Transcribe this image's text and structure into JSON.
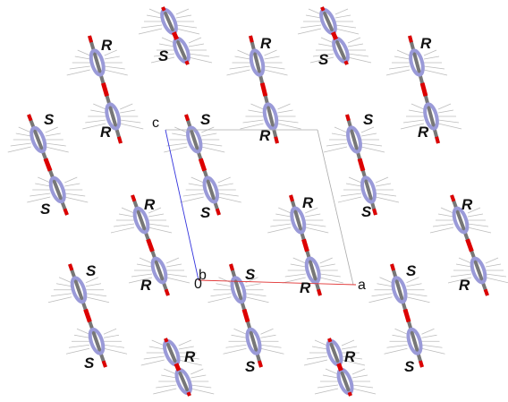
{
  "labels": [
    "R",
    "S",
    "R",
    "S",
    "R",
    "S",
    "S",
    "S",
    "R",
    "R",
    "R",
    "R",
    "R",
    "R",
    "S",
    "S",
    "S",
    "S",
    "S",
    "S",
    "R",
    "R",
    "R",
    "R",
    "R",
    "S",
    "S",
    "S"
  ],
  "axes": {
    "c": "c",
    "b": "b",
    "origin": "0",
    "a": "a"
  }
}
